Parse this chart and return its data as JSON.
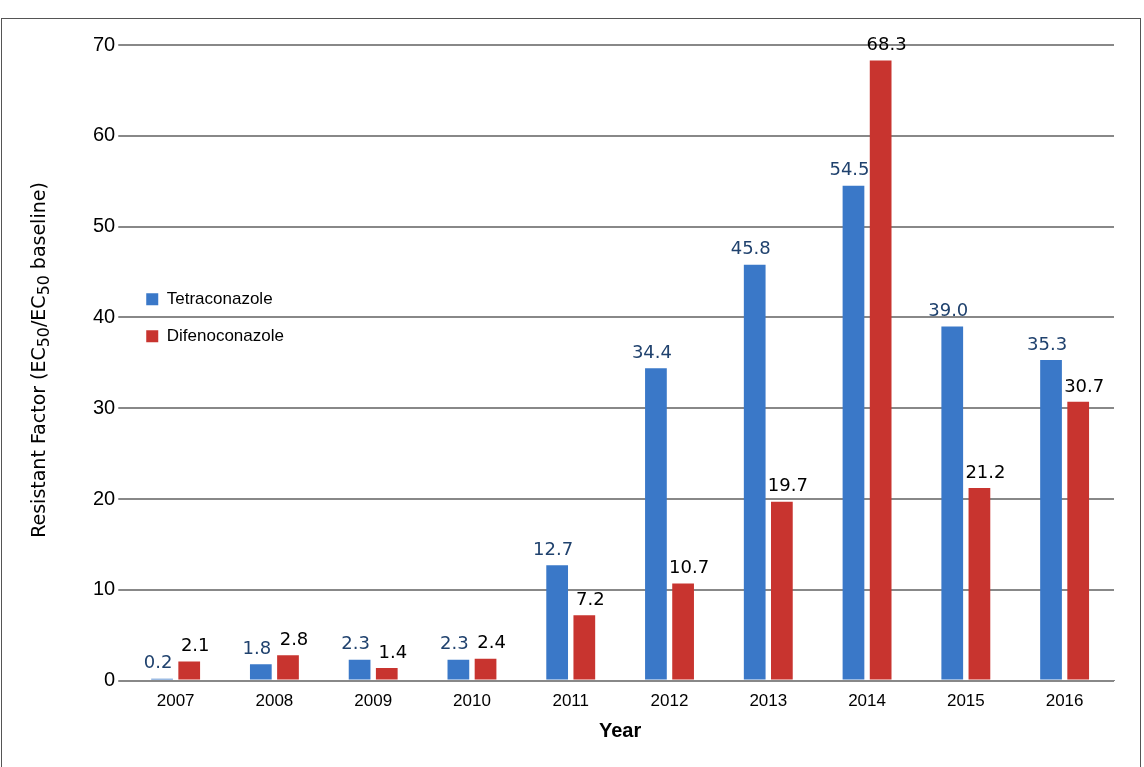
{
  "chart_data": {
    "type": "bar",
    "xlabel": "Year",
    "ylabel": "Resistant Factor (EC$_{50}$/EC$_{50}$ baseline)",
    "categories": [
      "2007",
      "2008",
      "2009",
      "2010",
      "2011",
      "2012",
      "2013",
      "2014",
      "2015",
      "2016"
    ],
    "series": [
      {
        "name": "Tetraconazole",
        "color": "#3a78c8",
        "values": [
          0.2,
          1.8,
          2.3,
          2.3,
          12.7,
          34.4,
          45.8,
          54.5,
          39.0,
          35.3
        ],
        "value_labels": [
          "0.2",
          "1.8",
          "2.3",
          "2.3",
          "12.7",
          "34.4",
          "45.8",
          "54.5",
          "39.0",
          "35.3"
        ]
      },
      {
        "name": "Difenoconazole",
        "color": "#c8342f",
        "values": [
          2.1,
          2.8,
          1.4,
          2.4,
          7.2,
          10.7,
          19.7,
          68.3,
          21.2,
          30.7
        ],
        "value_labels": [
          "2.1",
          "2.8",
          "1.4",
          "2.4",
          "7.2",
          "10.7",
          "19.7",
          "68.3",
          "21.2",
          "30.7"
        ]
      }
    ],
    "ylim": [
      0,
      70
    ],
    "yticks": [
      0,
      10,
      20,
      30,
      40,
      50,
      60,
      70
    ],
    "grid": "y",
    "legend": "top left"
  }
}
